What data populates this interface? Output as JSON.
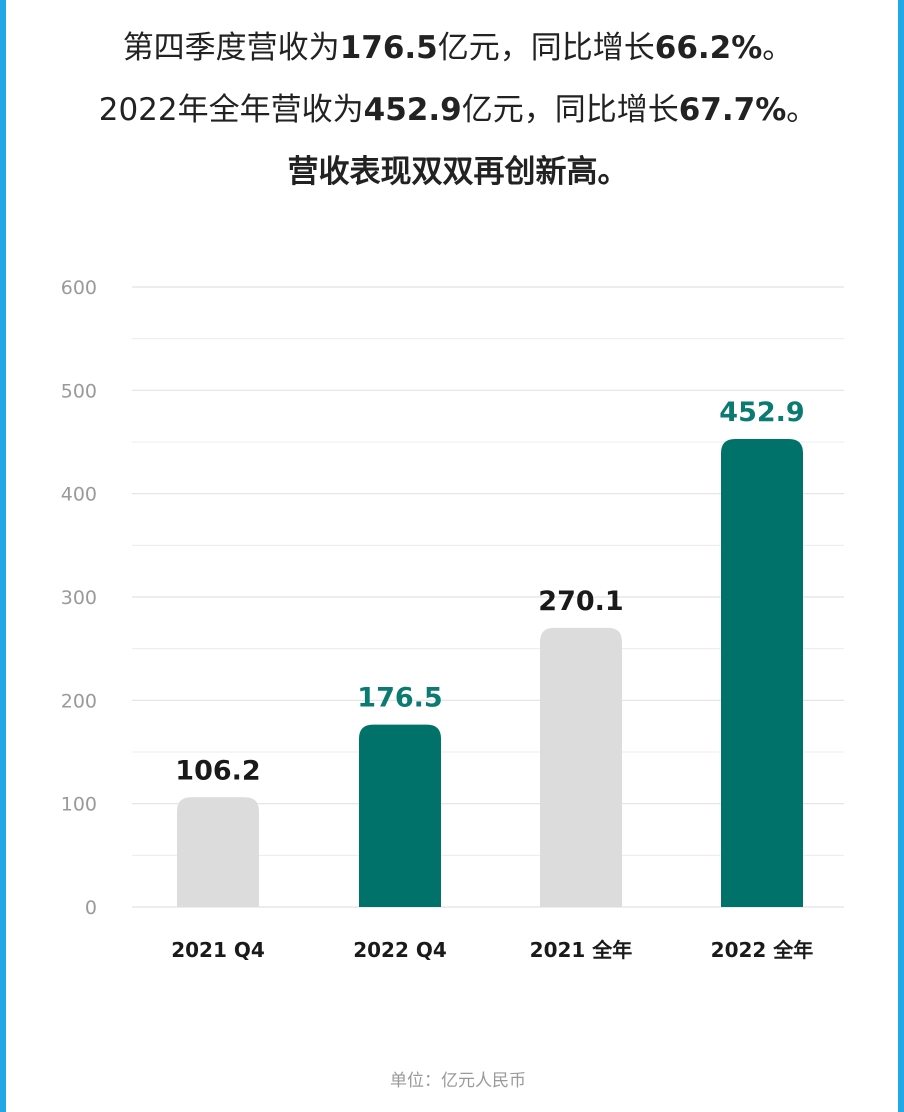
{
  "headline": {
    "line1": [
      {
        "text": "第四季度营收为",
        "bold": false
      },
      {
        "text": "176.5",
        "bold": true
      },
      {
        "text": "亿元，同比增长",
        "bold": false
      },
      {
        "text": "66.2%",
        "bold": true
      },
      {
        "text": "。",
        "bold": false
      }
    ],
    "line2": [
      {
        "text": "2022年全年营收为",
        "bold": false
      },
      {
        "text": "452.9",
        "bold": true
      },
      {
        "text": "亿元，同比增长",
        "bold": false
      },
      {
        "text": "67.7%",
        "bold": true
      },
      {
        "text": "。",
        "bold": false
      }
    ],
    "line3": "营收表现双双再创新高。"
  },
  "chart_data": {
    "type": "bar",
    "categories": [
      "2021 Q4",
      "2022 Q4",
      "2021 全年",
      "2022 全年"
    ],
    "values": [
      106.2,
      176.5,
      270.1,
      452.9
    ],
    "data_labels": [
      "106.2",
      "176.5",
      "270.1",
      "452.9"
    ],
    "yticks": [
      0,
      100,
      200,
      300,
      400,
      500,
      600
    ],
    "ylim": [
      0,
      600
    ],
    "grid": true,
    "minor_grid": true,
    "bar_colors": [
      "#dcdcdc",
      "#00726a",
      "#dcdcdc",
      "#00726a"
    ],
    "label_colors": [
      "#1a1a1a",
      "#0a7a72",
      "#1a1a1a",
      "#0a7a72"
    ],
    "title": "",
    "xlabel": "",
    "ylabel": ""
  },
  "unit_note": "单位：亿元人民币",
  "colors": {
    "frame_border": "#22a8e6",
    "highlight_bar": "#00726a",
    "base_bar": "#dcdcdc",
    "grid": "#e2e2e2",
    "tick_text": "#9a9a9a"
  }
}
